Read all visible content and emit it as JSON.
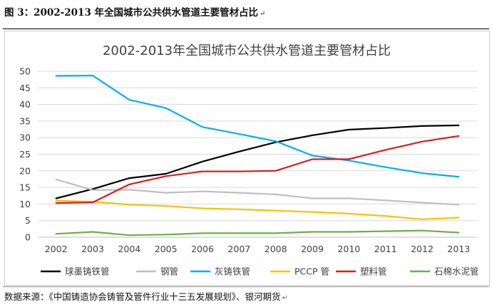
{
  "figure": {
    "caption": "图 3：2002-2013 年全国城市公共供水管道主要管材占比",
    "source": "数据来源：《中国铸造协会铸管及管件行业十三五发展规划》、银河期货",
    "return_mark": "↵"
  },
  "chart_data": {
    "type": "line",
    "title": "2002-2013年全国城市公共供水管道主要管材占比",
    "xlabel": "",
    "ylabel": "",
    "categories": [
      "2002",
      "2003",
      "2004",
      "2005",
      "2006",
      "2007",
      "2008",
      "2009",
      "2010",
      "2011",
      "2012",
      "2013"
    ],
    "y_ticks": [
      "0",
      "5",
      "10",
      "15",
      "20",
      "25",
      "30",
      "35",
      "40",
      "45",
      "50"
    ],
    "ylim": [
      0,
      50
    ],
    "grid": true,
    "legend_position": "bottom",
    "series": [
      {
        "name": "球墨铸铁管",
        "color": "#000000",
        "values": [
          11.7,
          14.5,
          17.8,
          19.1,
          22.8,
          25.8,
          28.6,
          30.7,
          32.4,
          32.9,
          33.5,
          33.7
        ]
      },
      {
        "name": "钢管",
        "color": "#bfbfbf",
        "values": [
          17.4,
          14.2,
          14.3,
          13.4,
          13.8,
          13.4,
          12.9,
          11.7,
          11.7,
          11.1,
          10.4,
          9.8
        ]
      },
      {
        "name": "灰铸铁管",
        "color": "#00b0f0",
        "values": [
          48.6,
          48.7,
          41.4,
          38.9,
          33.2,
          31.1,
          28.9,
          24.6,
          23.1,
          21.1,
          19.3,
          18.2
        ]
      },
      {
        "name": "PCCP 管",
        "color": "#ffc000",
        "values": [
          11.0,
          10.7,
          9.8,
          9.4,
          8.7,
          8.4,
          8.0,
          7.6,
          7.1,
          6.4,
          5.4,
          5.9
        ]
      },
      {
        "name": "塑料管",
        "color": "#e31a1c",
        "values": [
          10.3,
          10.5,
          15.9,
          18.4,
          19.8,
          19.8,
          20.0,
          23.5,
          23.5,
          26.3,
          28.8,
          30.5
        ]
      },
      {
        "name": "石棉水泥管",
        "color": "#70ad47",
        "values": [
          1.0,
          1.6,
          0.6,
          0.8,
          1.2,
          1.2,
          1.2,
          1.6,
          1.6,
          1.8,
          2.0,
          1.4
        ]
      }
    ]
  }
}
